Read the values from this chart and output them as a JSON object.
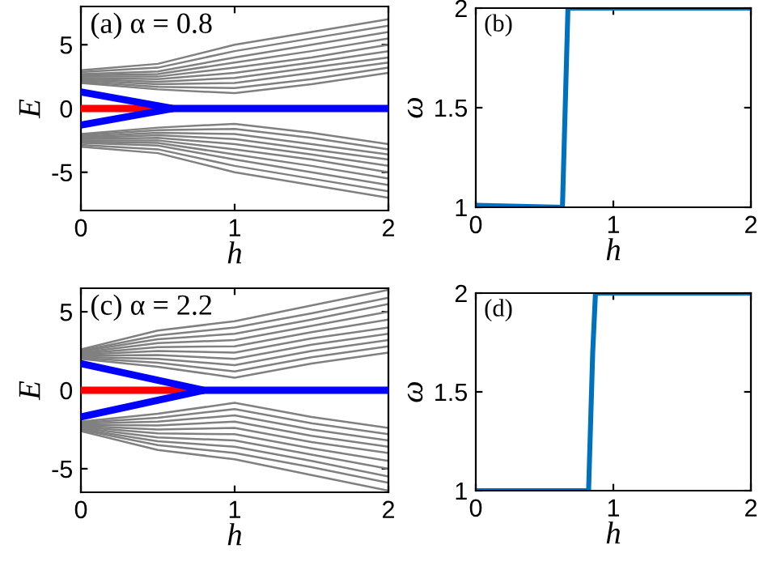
{
  "chart_data": [
    {
      "type": "line",
      "annotations": [
        "(a) α = 0.8"
      ],
      "xlabel": "h",
      "ylabel": "E",
      "xlim": [
        0,
        2
      ],
      "ylim": [
        -8,
        8
      ],
      "xticks": [
        0,
        1,
        2
      ],
      "yticks": [
        {
          "value": -5,
          "label": "-5"
        },
        0,
        5
      ],
      "grid": false,
      "legend": false,
      "x": [
        0,
        0.5,
        1,
        1.5,
        2
      ],
      "series": [
        {
          "color": "#808080",
          "values": [
            2.0,
            1.5,
            1.2,
            1.9,
            2.8
          ]
        },
        {
          "color": "#808080",
          "values": [
            2.1,
            1.7,
            1.6,
            2.3,
            3.2
          ]
        },
        {
          "color": "#808080",
          "values": [
            2.2,
            1.9,
            2.0,
            2.8,
            3.6
          ]
        },
        {
          "color": "#808080",
          "values": [
            2.3,
            2.1,
            2.4,
            3.2,
            4.0
          ]
        },
        {
          "color": "#808080",
          "values": [
            2.4,
            2.3,
            2.8,
            3.6,
            4.5
          ]
        },
        {
          "color": "#808080",
          "values": [
            2.5,
            2.5,
            3.2,
            4.0,
            5.0
          ]
        },
        {
          "color": "#808080",
          "values": [
            2.6,
            2.7,
            3.6,
            4.5,
            5.5
          ]
        },
        {
          "color": "#808080",
          "values": [
            2.7,
            2.9,
            4.0,
            5.0,
            6.0
          ]
        },
        {
          "color": "#808080",
          "values": [
            2.85,
            3.2,
            4.5,
            5.5,
            6.5
          ]
        },
        {
          "color": "#808080",
          "values": [
            3.0,
            3.5,
            5.0,
            6.0,
            7.0
          ]
        },
        {
          "color": "#808080",
          "values": [
            -2.0,
            -1.5,
            -1.2,
            -1.9,
            -2.8
          ]
        },
        {
          "color": "#808080",
          "values": [
            -2.1,
            -1.7,
            -1.6,
            -2.3,
            -3.2
          ]
        },
        {
          "color": "#808080",
          "values": [
            -2.2,
            -1.9,
            -2.0,
            -2.8,
            -3.6
          ]
        },
        {
          "color": "#808080",
          "values": [
            -2.3,
            -2.1,
            -2.4,
            -3.2,
            -4.0
          ]
        },
        {
          "color": "#808080",
          "values": [
            -2.4,
            -2.3,
            -2.8,
            -3.6,
            -4.5
          ]
        },
        {
          "color": "#808080",
          "values": [
            -2.5,
            -2.5,
            -3.2,
            -4.0,
            -5.0
          ]
        },
        {
          "color": "#808080",
          "values": [
            -2.6,
            -2.7,
            -3.6,
            -4.5,
            -5.5
          ]
        },
        {
          "color": "#808080",
          "values": [
            -2.7,
            -2.9,
            -4.0,
            -5.0,
            -6.0
          ]
        },
        {
          "color": "#808080",
          "values": [
            -2.85,
            -3.2,
            -4.5,
            -5.5,
            -6.5
          ]
        },
        {
          "color": "#808080",
          "values": [
            -3.0,
            -3.5,
            -5.0,
            -6.0,
            -7.0
          ]
        },
        {
          "color": "#ff0000",
          "x": [
            0,
            0.6
          ],
          "values": [
            0,
            0
          ]
        },
        {
          "color": "#0000ff",
          "x": [
            0,
            0.6,
            2
          ],
          "values": [
            1.3,
            0,
            0
          ]
        },
        {
          "color": "#0000ff",
          "x": [
            0,
            0.6
          ],
          "values": [
            -1.3,
            0
          ]
        }
      ]
    },
    {
      "type": "line",
      "annotations": [
        "(b)"
      ],
      "xlabel": "h",
      "ylabel": "ω",
      "xlim": [
        0,
        2
      ],
      "ylim": [
        1,
        2
      ],
      "xticks": [
        0,
        1,
        2
      ],
      "yticks": [
        1,
        1.5,
        2
      ],
      "grid": false,
      "legend": false,
      "series": [
        {
          "color": "#0072bd",
          "x": [
            0,
            0.63,
            0.65,
            0.67,
            2
          ],
          "values": [
            1.01,
            1.0,
            1.5,
            2.0,
            2.0
          ]
        }
      ]
    },
    {
      "type": "line",
      "annotations": [
        "(c) α = 2.2"
      ],
      "xlabel": "h",
      "ylabel": "E",
      "xlim": [
        0,
        2
      ],
      "ylim": [
        -6.5,
        6.5
      ],
      "xticks": [
        0,
        1,
        2
      ],
      "yticks": [
        {
          "value": -5,
          "label": "-5"
        },
        0,
        5
      ],
      "grid": false,
      "legend": false,
      "x": [
        0,
        0.5,
        1,
        1.5,
        2
      ],
      "series": [
        {
          "color": "#808080",
          "values": [
            2.0,
            1.5,
            0.8,
            1.7,
            2.4
          ]
        },
        {
          "color": "#808080",
          "values": [
            2.07,
            1.75,
            1.2,
            2.1,
            2.8
          ]
        },
        {
          "color": "#808080",
          "values": [
            2.13,
            2.0,
            1.6,
            2.5,
            3.2
          ]
        },
        {
          "color": "#808080",
          "values": [
            2.2,
            2.25,
            2.0,
            2.9,
            3.6
          ]
        },
        {
          "color": "#808080",
          "values": [
            2.27,
            2.5,
            2.4,
            3.3,
            4.0
          ]
        },
        {
          "color": "#808080",
          "values": [
            2.33,
            2.75,
            2.8,
            3.7,
            4.5
          ]
        },
        {
          "color": "#808080",
          "values": [
            2.4,
            3.0,
            3.2,
            4.1,
            5.0
          ]
        },
        {
          "color": "#808080",
          "values": [
            2.47,
            3.25,
            3.6,
            4.5,
            5.5
          ]
        },
        {
          "color": "#808080",
          "values": [
            2.53,
            3.5,
            4.0,
            4.9,
            5.9
          ]
        },
        {
          "color": "#808080",
          "values": [
            2.6,
            3.8,
            4.4,
            5.4,
            6.4
          ]
        },
        {
          "color": "#808080",
          "values": [
            -2.0,
            -1.5,
            -0.8,
            -1.7,
            -2.4
          ]
        },
        {
          "color": "#808080",
          "values": [
            -2.07,
            -1.75,
            -1.2,
            -2.1,
            -2.8
          ]
        },
        {
          "color": "#808080",
          "values": [
            -2.13,
            -2.0,
            -1.6,
            -2.5,
            -3.2
          ]
        },
        {
          "color": "#808080",
          "values": [
            -2.2,
            -2.25,
            -2.0,
            -2.9,
            -3.6
          ]
        },
        {
          "color": "#808080",
          "values": [
            -2.27,
            -2.5,
            -2.4,
            -3.3,
            -4.0
          ]
        },
        {
          "color": "#808080",
          "values": [
            -2.33,
            -2.75,
            -2.8,
            -3.7,
            -4.5
          ]
        },
        {
          "color": "#808080",
          "values": [
            -2.4,
            -3.0,
            -3.2,
            -4.1,
            -5.0
          ]
        },
        {
          "color": "#808080",
          "values": [
            -2.47,
            -3.25,
            -3.6,
            -4.5,
            -5.5
          ]
        },
        {
          "color": "#808080",
          "values": [
            -2.53,
            -3.5,
            -4.0,
            -4.9,
            -5.9
          ]
        },
        {
          "color": "#808080",
          "values": [
            -2.6,
            -3.8,
            -4.4,
            -5.4,
            -6.4
          ]
        },
        {
          "color": "#ff0000",
          "x": [
            0,
            0.8
          ],
          "values": [
            0,
            0
          ]
        },
        {
          "color": "#0000ff",
          "x": [
            0,
            0.8,
            2
          ],
          "values": [
            1.7,
            0,
            0
          ]
        },
        {
          "color": "#0000ff",
          "x": [
            0,
            0.8
          ],
          "values": [
            -1.7,
            0
          ]
        }
      ]
    },
    {
      "type": "line",
      "annotations": [
        "(d)"
      ],
      "xlabel": "h",
      "ylabel": "ω",
      "xlim": [
        0,
        2
      ],
      "ylim": [
        1,
        2
      ],
      "xticks": [
        0,
        1,
        2
      ],
      "yticks": [
        1,
        1.5,
        2
      ],
      "grid": false,
      "legend": false,
      "series": [
        {
          "color": "#0072bd",
          "x": [
            0,
            0.82,
            0.85,
            0.87,
            2
          ],
          "values": [
            1.0,
            1.0,
            1.7,
            2.0,
            2.0
          ]
        }
      ]
    }
  ]
}
